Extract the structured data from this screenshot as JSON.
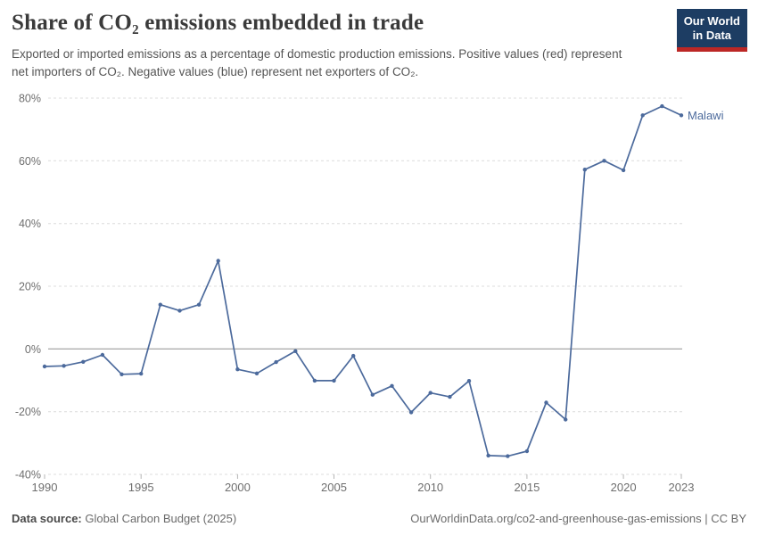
{
  "header": {
    "title": "Share of CO₂ emissions embedded in trade",
    "subtitle": "Exported or imported emissions as a percentage of domestic production emissions. Positive values (red) represent net importers of CO₂. Negative values (blue) represent net exporters of CO₂."
  },
  "logo": {
    "line1": "Our World",
    "line2": "in Data"
  },
  "footer": {
    "source_label": "Data source:",
    "source_value": "Global Carbon Budget (2025)",
    "credit": "OurWorldinData.org/co2-and-greenhouse-gas-emissions | CC BY"
  },
  "colors": {
    "line": "#4c6a9c",
    "grid": "#dcdcdc",
    "zero_line": "#8f8f8f",
    "axis_text": "#6e6e6e",
    "tick": "#b5b5b5",
    "logo_bg": "#1d3d63",
    "logo_stripe": "#bc2725"
  },
  "chart_data": {
    "type": "line",
    "title": "Share of CO₂ emissions embedded in trade",
    "xlabel": "",
    "ylabel": "",
    "x": [
      1990,
      1991,
      1992,
      1993,
      1994,
      1995,
      1996,
      1997,
      1998,
      1999,
      2000,
      2001,
      2002,
      2003,
      2004,
      2005,
      2006,
      2007,
      2008,
      2009,
      2010,
      2011,
      2012,
      2013,
      2014,
      2015,
      2016,
      2017,
      2018,
      2019,
      2020,
      2021,
      2022,
      2023
    ],
    "series": [
      {
        "name": "Malawi",
        "color": "#4c6a9c",
        "values": [
          -5.6,
          -5.4,
          -4.1,
          -1.9,
          -8.1,
          -7.9,
          14.1,
          12.2,
          14.1,
          28.1,
          -6.5,
          -7.8,
          -4.2,
          -0.7,
          -10.1,
          -10.1,
          -2.2,
          -14.6,
          -11.8,
          -20.2,
          -14.0,
          -15.3,
          -10.2,
          -34.0,
          -34.2,
          -32.6,
          -17.1,
          -22.5,
          57.2,
          60.0,
          57.0,
          74.5,
          77.4,
          74.5
        ]
      }
    ],
    "x_ticks": [
      1990,
      1995,
      2000,
      2005,
      2010,
      2015,
      2020,
      2023
    ],
    "y_ticks": [
      -40,
      -20,
      0,
      20,
      40,
      60,
      80
    ],
    "y_tick_suffix": "%",
    "xlim": [
      1990,
      2023
    ],
    "ylim": [
      -40,
      80
    ],
    "grid": "horizontal dashed gridlines, solid line at zero",
    "legend_position": "label at end of line"
  }
}
